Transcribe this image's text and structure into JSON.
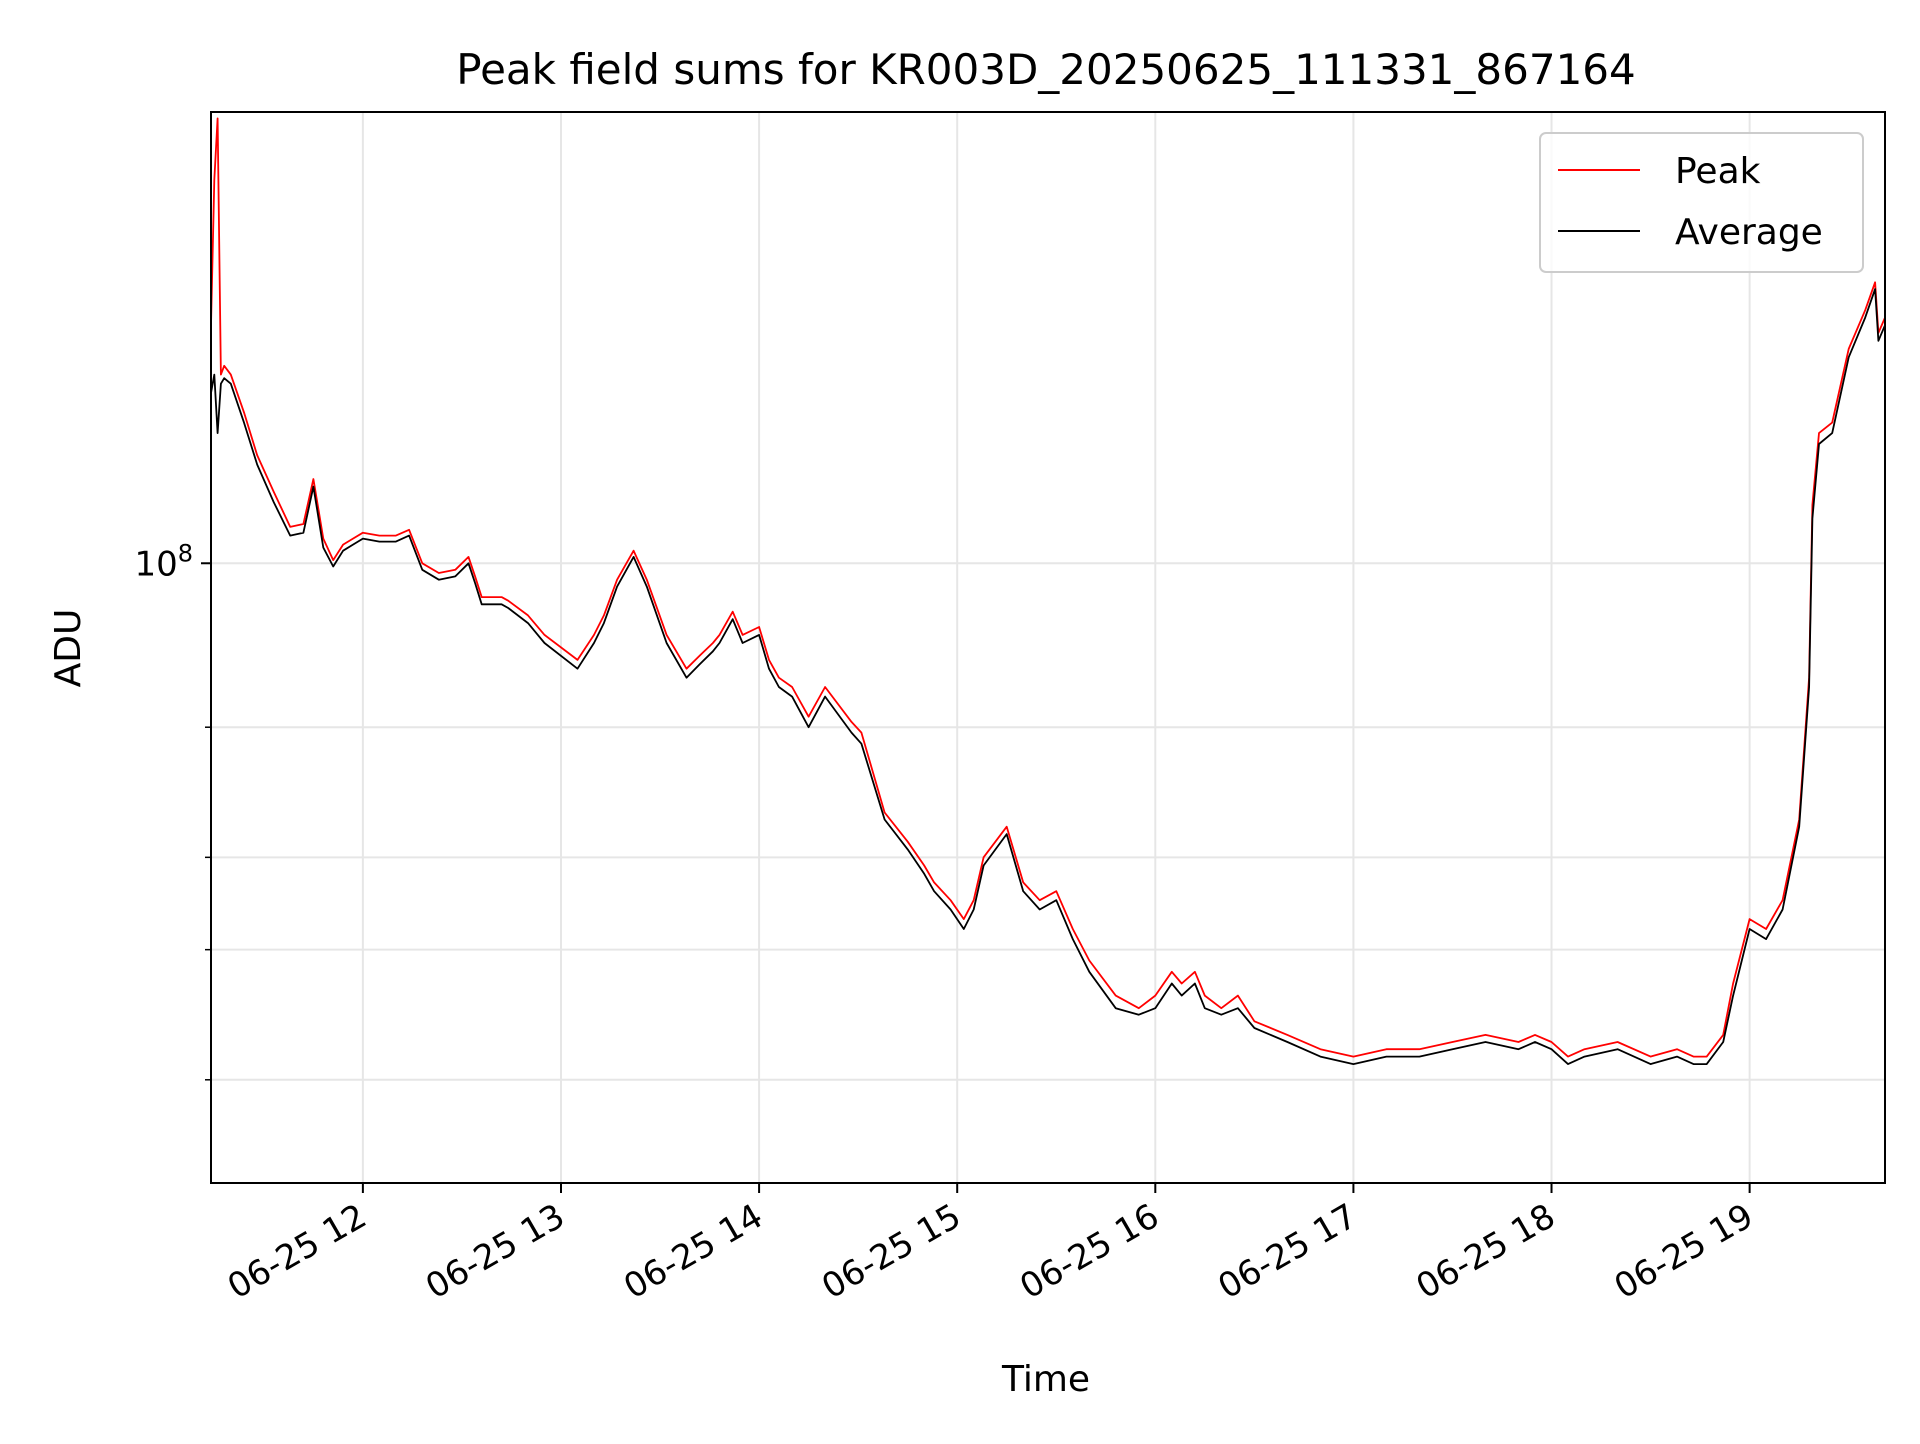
{
  "chart_data": {
    "type": "line",
    "title": "Peak field sums for KR003D_20250625_111331_867164",
    "xlabel": "Time",
    "ylabel": "ADU",
    "y_scale": "log",
    "ylim": [
      14500000,
      408000000
    ],
    "xlim": [
      "2025-06-25 11:14",
      "2025-06-25 19:41"
    ],
    "grid": true,
    "legend_position": "top-right",
    "x_ticks": [
      {
        "t": "2025-06-25 12:00",
        "label": "06-25 12"
      },
      {
        "t": "2025-06-25 13:00",
        "label": "06-25 13"
      },
      {
        "t": "2025-06-25 14:00",
        "label": "06-25 14"
      },
      {
        "t": "2025-06-25 15:00",
        "label": "06-25 15"
      },
      {
        "t": "2025-06-25 16:00",
        "label": "06-25 16"
      },
      {
        "t": "2025-06-25 17:00",
        "label": "06-25 17"
      },
      {
        "t": "2025-06-25 18:00",
        "label": "06-25 18"
      },
      {
        "t": "2025-06-25 19:00",
        "label": "06-25 19"
      }
    ],
    "y_major_ticks": [
      {
        "value": 100000000,
        "label_base": "10",
        "label_exp": "8"
      }
    ],
    "y_minor_ticks": [
      20000000,
      30000000,
      40000000,
      60000000
    ],
    "series": [
      {
        "name": "Peak",
        "color": "#ff0000",
        "x": [
          "2025-06-25 11:14",
          "2025-06-25 11:15",
          "2025-06-25 11:16",
          "2025-06-25 11:17",
          "2025-06-25 11:18",
          "2025-06-25 11:20",
          "2025-06-25 11:24",
          "2025-06-25 11:28",
          "2025-06-25 11:33",
          "2025-06-25 11:38",
          "2025-06-25 11:42",
          "2025-06-25 11:45",
          "2025-06-25 11:48",
          "2025-06-25 11:51",
          "2025-06-25 11:54",
          "2025-06-25 11:57",
          "2025-06-25 12:00",
          "2025-06-25 12:05",
          "2025-06-25 12:10",
          "2025-06-25 12:14",
          "2025-06-25 12:18",
          "2025-06-25 12:23",
          "2025-06-25 12:28",
          "2025-06-25 12:32",
          "2025-06-25 12:34",
          "2025-06-25 12:36",
          "2025-06-25 12:42",
          "2025-06-25 12:44",
          "2025-06-25 12:50",
          "2025-06-25 12:55",
          "2025-06-25 13:05",
          "2025-06-25 13:10",
          "2025-06-25 13:13",
          "2025-06-25 13:17",
          "2025-06-25 13:22",
          "2025-06-25 13:26",
          "2025-06-25 13:32",
          "2025-06-25 13:38",
          "2025-06-25 13:42",
          "2025-06-25 13:46",
          "2025-06-25 13:48",
          "2025-06-25 13:52",
          "2025-06-25 13:55",
          "2025-06-25 14:00",
          "2025-06-25 14:03",
          "2025-06-25 14:06",
          "2025-06-25 14:10",
          "2025-06-25 14:15",
          "2025-06-25 14:20",
          "2025-06-25 14:28",
          "2025-06-25 14:31",
          "2025-06-25 14:38",
          "2025-06-25 14:45",
          "2025-06-25 14:50",
          "2025-06-25 14:53",
          "2025-06-25 14:58",
          "2025-06-25 15:02",
          "2025-06-25 15:05",
          "2025-06-25 15:08",
          "2025-06-25 15:15",
          "2025-06-25 15:20",
          "2025-06-25 15:25",
          "2025-06-25 15:30",
          "2025-06-25 15:35",
          "2025-06-25 15:40",
          "2025-06-25 15:48",
          "2025-06-25 15:55",
          "2025-06-25 16:00",
          "2025-06-25 16:05",
          "2025-06-25 16:08",
          "2025-06-25 16:12",
          "2025-06-25 16:15",
          "2025-06-25 16:20",
          "2025-06-25 16:25",
          "2025-06-25 16:30",
          "2025-06-25 16:40",
          "2025-06-25 16:50",
          "2025-06-25 17:00",
          "2025-06-25 17:10",
          "2025-06-25 17:20",
          "2025-06-25 17:30",
          "2025-06-25 17:40",
          "2025-06-25 17:50",
          "2025-06-25 17:55",
          "2025-06-25 18:00",
          "2025-06-25 18:05",
          "2025-06-25 18:10",
          "2025-06-25 18:20",
          "2025-06-25 18:30",
          "2025-06-25 18:38",
          "2025-06-25 18:43",
          "2025-06-25 18:47",
          "2025-06-25 18:52",
          "2025-06-25 18:55",
          "2025-06-25 19:00",
          "2025-06-25 19:05",
          "2025-06-25 19:10",
          "2025-06-25 19:15",
          "2025-06-25 19:18",
          "2025-06-25 19:19",
          "2025-06-25 19:21",
          "2025-06-25 19:25",
          "2025-06-25 19:30",
          "2025-06-25 19:35",
          "2025-06-25 19:38",
          "2025-06-25 19:39",
          "2025-06-25 19:41"
        ],
        "y": [
          210000000,
          330000000,
          400000000,
          180000000,
          185000000,
          180000000,
          160000000,
          140000000,
          125000000,
          112000000,
          113000000,
          130000000,
          108000000,
          101000000,
          106000000,
          108000000,
          110000000,
          109000000,
          109000000,
          111000000,
          100000000,
          97000000,
          98000000,
          102000000,
          96000000,
          90000000,
          90000000,
          89000000,
          85000000,
          80000000,
          74000000,
          80000000,
          85000000,
          95000000,
          104000000,
          95000000,
          80000000,
          72000000,
          75000000,
          78000000,
          80000000,
          86000000,
          80000000,
          82000000,
          74000000,
          70000000,
          68000000,
          62000000,
          68000000,
          61000000,
          59000000,
          46000000,
          42000000,
          39000000,
          37000000,
          35000000,
          33000000,
          35000000,
          40000000,
          44000000,
          37000000,
          35000000,
          36000000,
          32000000,
          29000000,
          26000000,
          25000000,
          26000000,
          28000000,
          27000000,
          28000000,
          26000000,
          25000000,
          26000000,
          24000000,
          23000000,
          22000000,
          21500000,
          22000000,
          22000000,
          22500000,
          23000000,
          22500000,
          23000000,
          22500000,
          21500000,
          22000000,
          22500000,
          21500000,
          22000000,
          21500000,
          21500000,
          23000000,
          27000000,
          33000000,
          32000000,
          35000000,
          45000000,
          70000000,
          120000000,
          150000000,
          155000000,
          195000000,
          220000000,
          240000000,
          205000000,
          215000000
        ]
      },
      {
        "name": "Average",
        "color": "#000000",
        "x": [
          "2025-06-25 11:14",
          "2025-06-25 11:15",
          "2025-06-25 11:16",
          "2025-06-25 11:17",
          "2025-06-25 11:18",
          "2025-06-25 11:20",
          "2025-06-25 11:24",
          "2025-06-25 11:28",
          "2025-06-25 11:33",
          "2025-06-25 11:38",
          "2025-06-25 11:42",
          "2025-06-25 11:45",
          "2025-06-25 11:48",
          "2025-06-25 11:51",
          "2025-06-25 11:54",
          "2025-06-25 11:57",
          "2025-06-25 12:00",
          "2025-06-25 12:05",
          "2025-06-25 12:10",
          "2025-06-25 12:14",
          "2025-06-25 12:18",
          "2025-06-25 12:23",
          "2025-06-25 12:28",
          "2025-06-25 12:32",
          "2025-06-25 12:34",
          "2025-06-25 12:36",
          "2025-06-25 12:42",
          "2025-06-25 12:44",
          "2025-06-25 12:50",
          "2025-06-25 12:55",
          "2025-06-25 13:05",
          "2025-06-25 13:10",
          "2025-06-25 13:13",
          "2025-06-25 13:17",
          "2025-06-25 13:22",
          "2025-06-25 13:26",
          "2025-06-25 13:32",
          "2025-06-25 13:38",
          "2025-06-25 13:42",
          "2025-06-25 13:46",
          "2025-06-25 13:48",
          "2025-06-25 13:52",
          "2025-06-25 13:55",
          "2025-06-25 14:00",
          "2025-06-25 14:03",
          "2025-06-25 14:06",
          "2025-06-25 14:10",
          "2025-06-25 14:15",
          "2025-06-25 14:20",
          "2025-06-25 14:28",
          "2025-06-25 14:31",
          "2025-06-25 14:38",
          "2025-06-25 14:45",
          "2025-06-25 14:50",
          "2025-06-25 14:53",
          "2025-06-25 14:58",
          "2025-06-25 15:02",
          "2025-06-25 15:05",
          "2025-06-25 15:08",
          "2025-06-25 15:15",
          "2025-06-25 15:20",
          "2025-06-25 15:25",
          "2025-06-25 15:30",
          "2025-06-25 15:35",
          "2025-06-25 15:40",
          "2025-06-25 15:48",
          "2025-06-25 15:55",
          "2025-06-25 16:00",
          "2025-06-25 16:05",
          "2025-06-25 16:08",
          "2025-06-25 16:12",
          "2025-06-25 16:15",
          "2025-06-25 16:20",
          "2025-06-25 16:25",
          "2025-06-25 16:30",
          "2025-06-25 16:40",
          "2025-06-25 16:50",
          "2025-06-25 17:00",
          "2025-06-25 17:10",
          "2025-06-25 17:20",
          "2025-06-25 17:30",
          "2025-06-25 17:40",
          "2025-06-25 17:50",
          "2025-06-25 17:55",
          "2025-06-25 18:00",
          "2025-06-25 18:05",
          "2025-06-25 18:10",
          "2025-06-25 18:20",
          "2025-06-25 18:30",
          "2025-06-25 18:38",
          "2025-06-25 18:43",
          "2025-06-25 18:47",
          "2025-06-25 18:52",
          "2025-06-25 18:55",
          "2025-06-25 19:00",
          "2025-06-25 19:05",
          "2025-06-25 19:10",
          "2025-06-25 19:15",
          "2025-06-25 19:18",
          "2025-06-25 19:19",
          "2025-06-25 19:21",
          "2025-06-25 19:25",
          "2025-06-25 19:30",
          "2025-06-25 19:35",
          "2025-06-25 19:38",
          "2025-06-25 19:39",
          "2025-06-25 19:41"
        ],
        "y": [
          170000000,
          180000000,
          150000000,
          175000000,
          178000000,
          175000000,
          155000000,
          136000000,
          121000000,
          109000000,
          110000000,
          127000000,
          105000000,
          99000000,
          104000000,
          106000000,
          108000000,
          107000000,
          107000000,
          109000000,
          98000000,
          95000000,
          96000000,
          100000000,
          94000000,
          88000000,
          88000000,
          87000000,
          83000000,
          78000000,
          72000000,
          78000000,
          83000000,
          93000000,
          102000000,
          93000000,
          78000000,
          70000000,
          73000000,
          76000000,
          78000000,
          84000000,
          78000000,
          80000000,
          72000000,
          68000000,
          66000000,
          60000000,
          66000000,
          59000000,
          57000000,
          45000000,
          41000000,
          38000000,
          36000000,
          34000000,
          32000000,
          34000000,
          39000000,
          43000000,
          36000000,
          34000000,
          35000000,
          31000000,
          28000000,
          25000000,
          24500000,
          25000000,
          27000000,
          26000000,
          27000000,
          25000000,
          24500000,
          25000000,
          23500000,
          22500000,
          21500000,
          21000000,
          21500000,
          21500000,
          22000000,
          22500000,
          22000000,
          22500000,
          22000000,
          21000000,
          21500000,
          22000000,
          21000000,
          21500000,
          21000000,
          21000000,
          22500000,
          26000000,
          32000000,
          31000000,
          34000000,
          44000000,
          68000000,
          115000000,
          145000000,
          150000000,
          190000000,
          215000000,
          235000000,
          200000000,
          210000000
        ]
      }
    ]
  }
}
